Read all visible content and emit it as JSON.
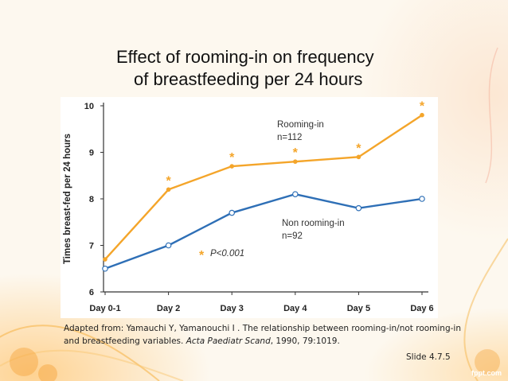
{
  "title": {
    "line1": "Effect of rooming-in on frequency",
    "line2": "of breastfeeding per 24 hours"
  },
  "chart_data": {
    "type": "line",
    "categories": [
      "Day 0-1",
      "Day 2",
      "Day 3",
      "Day 4",
      "Day 5",
      "Day 6"
    ],
    "series": [
      {
        "name": "Rooming-in",
        "subtitle": "n=112",
        "color": "#f4a52a",
        "values": [
          6.7,
          8.2,
          8.7,
          8.8,
          8.9,
          9.8
        ]
      },
      {
        "name": "Non rooming-in",
        "subtitle": "n=92",
        "color": "#2e6fb6",
        "values": [
          6.5,
          7.0,
          7.7,
          8.1,
          7.8,
          8.0
        ]
      }
    ],
    "significant_days": [
      "Day 2",
      "Day 3",
      "Day 4",
      "Day 5",
      "Day 6"
    ],
    "annotation": {
      "symbol": "*",
      "text": "P<0.001"
    },
    "yticks": [
      6,
      7,
      8,
      9,
      10
    ],
    "ylim": [
      6,
      10
    ],
    "ylabel": "Times breast-fed per 24 hours",
    "xlabel": ""
  },
  "caption": {
    "part1": "Adapted from: Yamauchi Y, Yamanouchi I . The relationship between rooming-in/not rooming-in and breastfeeding variables. ",
    "journal": "Acta Paediatr Scand",
    "part2": ", 1990, 79:1019."
  },
  "slide_number": "Slide 4.7.5",
  "brand": "fppt.com",
  "colors": {
    "accent": "#f4a52a",
    "secondary": "#2e6fb6"
  }
}
